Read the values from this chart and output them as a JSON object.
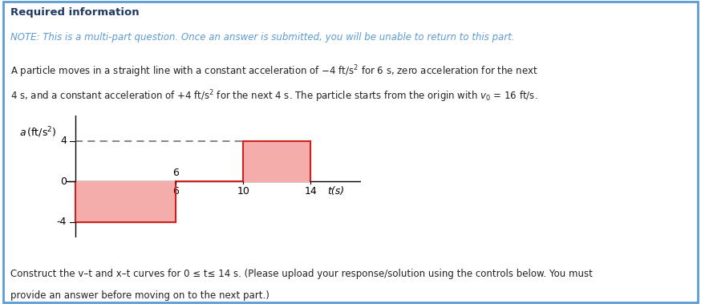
{
  "title_bold": "Required information",
  "note_text": "NOTE: This is a multi-part question. Once an answer is submitted, you will be unable to return to this part.",
  "body_text1": "A particle moves in a straight line with a constant acceleration of –4 ft/s² for 6 s, zero acceleration for the next",
  "body_text2": "4 s, and a constant acceleration of +4 ft/s² for the next 4 s. The particle starts from the origin with v₀ = 16 ft/s.",
  "bottom_text1": "Construct the v–t and x–t curves for 0 ≤ t≤ 14 s. (Please upload your response/solution using the controls below. You must",
  "bottom_text2": "provide an answer before moving on to the next part.)",
  "ylabel": "a (ft/s²)",
  "xlabel": "t(s)",
  "ylim": [
    -5.5,
    6.5
  ],
  "xlim": [
    -0.5,
    17
  ],
  "yticks": [
    -4,
    0,
    4
  ],
  "xtick_vals": [
    6,
    10,
    14
  ],
  "segments": [
    {
      "t_start": 0,
      "t_end": 6,
      "a": -4
    },
    {
      "t_start": 6,
      "t_end": 10,
      "a": 0
    },
    {
      "t_start": 10,
      "t_end": 14,
      "a": 4
    }
  ],
  "fill_color": "#f5adab",
  "line_color": "#cc2222",
  "dashed_color": "#666666",
  "border_color": "#5b9bd5",
  "bg_color": "#ffffff",
  "text_color_title": "#1f3864",
  "text_color_note": "#5b9bd5",
  "text_color_body": "#222222",
  "font_size_title": 9.5,
  "font_size_note": 8.5,
  "font_size_body": 8.5,
  "font_size_tick": 9,
  "font_size_axlabel": 9
}
